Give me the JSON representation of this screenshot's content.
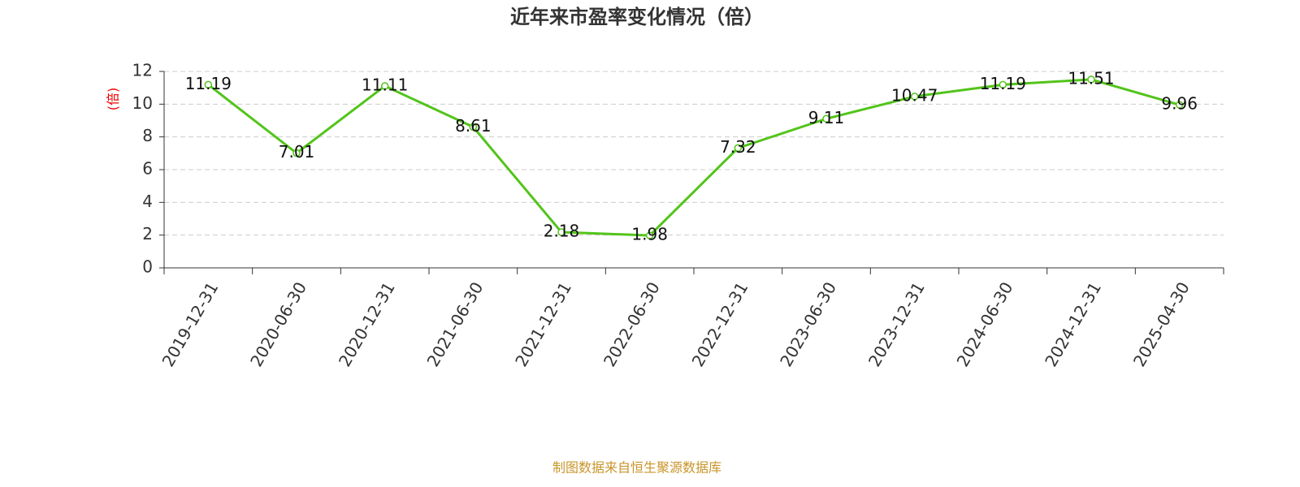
{
  "chart_data": {
    "type": "line",
    "title": "近年来市盈率变化情况（倍）",
    "y_label": "(倍)",
    "categories": [
      "2019-12-31",
      "2020-06-30",
      "2020-12-31",
      "2021-06-30",
      "2021-12-31",
      "2022-06-30",
      "2022-12-31",
      "2023-06-30",
      "2023-12-31",
      "2024-06-30",
      "2024-12-31",
      "2025-04-30"
    ],
    "values": [
      11.19,
      7.01,
      11.11,
      8.61,
      2.18,
      1.98,
      7.32,
      9.11,
      10.47,
      11.19,
      11.51,
      9.96
    ],
    "color": "#52c41a",
    "ylim": [
      0,
      12
    ],
    "yticks": [
      0,
      2,
      4,
      6,
      8,
      10,
      12
    ],
    "grid": true,
    "source": "制图数据来自恒生聚源数据库"
  }
}
